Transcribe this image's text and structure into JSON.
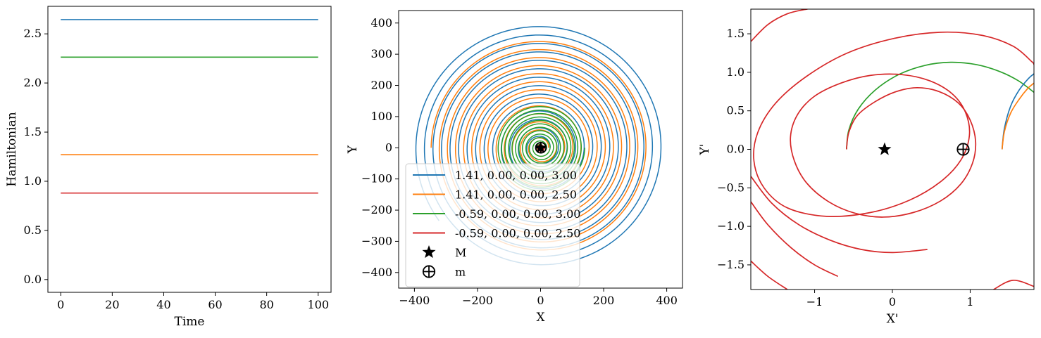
{
  "chart_data": [
    {
      "type": "line",
      "xlabel": "Time",
      "ylabel": "Hamiltonian",
      "xlim": [
        -5,
        105
      ],
      "ylim": [
        -0.13,
        2.78
      ],
      "xticks": [
        0,
        20,
        40,
        60,
        80,
        100
      ],
      "xtick_labels": [
        "0",
        "20",
        "40",
        "60",
        "80",
        "100"
      ],
      "yticks": [
        0.0,
        0.5,
        1.0,
        1.5,
        2.0,
        2.5
      ],
      "ytick_labels": [
        "0.0",
        "0.5",
        "1.0",
        "1.5",
        "2.0",
        "2.5"
      ],
      "grid": false,
      "series": [
        {
          "x": [
            0,
            100
          ],
          "values": [
            2.645,
            2.645
          ],
          "color": "#1f77b4"
        },
        {
          "x": [
            0,
            100
          ],
          "values": [
            2.263,
            2.263
          ],
          "color": "#2ca02c"
        },
        {
          "x": [
            0,
            100
          ],
          "values": [
            1.27,
            1.27
          ],
          "color": "#ff7f0e"
        },
        {
          "x": [
            0,
            100
          ],
          "values": [
            0.88,
            0.88
          ],
          "color": "#d62728"
        }
      ]
    },
    {
      "type": "line",
      "xlabel": "X",
      "ylabel": "Y",
      "xlim": [
        -450,
        450
      ],
      "ylim": [
        -450,
        440
      ],
      "xticks": [
        -400,
        -200,
        0,
        200,
        400
      ],
      "xtick_labels": [
        "−400",
        "−200",
        "0",
        "200",
        "400"
      ],
      "yticks": [
        -400,
        -300,
        -200,
        -100,
        0,
        100,
        200,
        300,
        400
      ],
      "ytick_labels": [
        "−400",
        "−300",
        "−200",
        "−100",
        "0",
        "100",
        "200",
        "300",
        "400"
      ],
      "grid": false,
      "legend_position": "lower-left",
      "series": [
        {
          "name": "1.41, 0.00, 0.00, 3.00",
          "color": "#1f77b4",
          "spiral": {
            "r_start": 30,
            "r_end": 398,
            "turns": 13.6
          }
        },
        {
          "name": "1.41, 0.00, 0.00, 2.50",
          "color": "#ff7f0e",
          "spiral": {
            "r_start": 25,
            "r_end": 347,
            "turns": 12.5
          }
        },
        {
          "name": "-0.59, 0.00, 0.00, 3.00",
          "color": "#2ca02c",
          "spiral": {
            "r_start": 8,
            "r_end": 140,
            "turns": 12.0
          }
        },
        {
          "name": "-0.59, 0.00, 0.00, 2.50",
          "color": "#d62728",
          "spiral": {
            "r_start": 2,
            "r_end": 12,
            "turns": 3.0
          }
        }
      ],
      "markers": [
        {
          "name": "M",
          "symbol": "star",
          "x": -0.1,
          "y": 0
        },
        {
          "name": "m",
          "symbol": "circled-plus",
          "x": 0.9,
          "y": 0
        }
      ]
    },
    {
      "type": "line",
      "xlabel": "X'",
      "ylabel": "Y'",
      "xlim": [
        -1.82,
        1.82
      ],
      "ylim": [
        -1.82,
        1.82
      ],
      "xticks": [
        -1,
        0,
        1
      ],
      "xtick_labels": [
        "−1",
        "0",
        "1"
      ],
      "yticks": [
        -1.5,
        -1.0,
        -0.5,
        0.0,
        0.5,
        1.0,
        1.5
      ],
      "ytick_labels": [
        "−1.5",
        "−1.0",
        "−0.5",
        "0.0",
        "0.5",
        "1.0",
        "1.5"
      ],
      "grid": false,
      "markers": [
        {
          "name": "M",
          "symbol": "star",
          "x": -0.1,
          "y": 0
        },
        {
          "name": "m",
          "symbol": "circled-plus",
          "x": 0.91,
          "y": 0
        }
      ],
      "series": [
        {
          "color": "#2ca02c",
          "x": [
            -0.59,
            -0.56,
            -0.44,
            -0.22,
            0.08,
            0.42,
            0.75,
            1.08,
            1.38,
            1.62,
            1.82
          ],
          "values": [
            0.0,
            0.25,
            0.52,
            0.77,
            0.97,
            1.09,
            1.13,
            1.1,
            1.01,
            0.89,
            0.74
          ]
        },
        {
          "color": "#1f77b4",
          "x": [
            1.41,
            1.44,
            1.52,
            1.63,
            1.75,
            1.82
          ],
          "values": [
            0.0,
            0.27,
            0.56,
            0.77,
            0.92,
            0.98
          ]
        },
        {
          "color": "#ff7f0e",
          "x": [
            1.41,
            1.44,
            1.52,
            1.63,
            1.74,
            1.82
          ],
          "values": [
            0.0,
            0.23,
            0.47,
            0.65,
            0.79,
            0.86
          ]
        },
        {
          "color": "#d62728",
          "x": [
            -0.59,
            -0.56,
            -0.45,
            -0.22,
            0.05,
            0.32,
            0.6,
            0.85,
            1.0,
            1.07,
            1.03,
            0.88,
            0.62,
            0.27,
            -0.12,
            -0.48,
            -0.82,
            -1.1,
            -1.26,
            -1.31,
            -1.22,
            -1.0,
            -0.66,
            -0.28,
            0.12,
            0.48,
            0.77,
            0.94,
            0.99,
            0.88,
            0.62,
            0.22,
            -0.28,
            -0.85,
            -1.35,
            -1.65,
            -1.78,
            -1.73,
            -1.5,
            -1.1,
            -0.58,
            0.02,
            0.62,
            1.15,
            1.55,
            1.79,
            1.82
          ],
          "values": [
            0.0,
            0.22,
            0.44,
            0.62,
            0.75,
            0.8,
            0.75,
            0.6,
            0.38,
            0.1,
            -0.18,
            -0.45,
            -0.67,
            -0.82,
            -0.88,
            -0.83,
            -0.68,
            -0.44,
            -0.15,
            0.16,
            0.45,
            0.69,
            0.86,
            0.96,
            0.97,
            0.89,
            0.72,
            0.48,
            0.18,
            -0.14,
            -0.42,
            -0.66,
            -0.82,
            -0.87,
            -0.76,
            -0.5,
            -0.15,
            0.22,
            0.6,
            0.95,
            1.25,
            1.44,
            1.52,
            1.48,
            1.34,
            1.14,
            1.1
          ]
        },
        {
          "color": "#d62728",
          "x": [
            -1.82,
            -1.6,
            -1.35,
            -1.1,
            -0.85
          ],
          "values": [
            1.4,
            1.62,
            1.76,
            1.82,
            1.86
          ]
        },
        {
          "color": "#d62728",
          "x": [
            -1.82,
            -1.55,
            -1.2,
            -0.8,
            -0.4,
            0.0,
            0.45
          ],
          "values": [
            -0.35,
            -0.7,
            -0.98,
            -1.18,
            -1.3,
            -1.34,
            -1.3
          ]
        },
        {
          "color": "#d62728",
          "x": [
            -1.82,
            -1.6,
            -1.3,
            -1.0,
            -0.7
          ],
          "values": [
            -0.68,
            -0.98,
            -1.28,
            -1.5,
            -1.65
          ]
        },
        {
          "color": "#d62728",
          "x": [
            -1.82,
            -1.6,
            -1.35
          ],
          "values": [
            -1.45,
            -1.65,
            -1.82
          ]
        },
        {
          "color": "#d62728",
          "x": [
            1.3,
            1.55,
            1.82
          ],
          "values": [
            -1.82,
            -1.7,
            -1.78
          ]
        }
      ]
    }
  ]
}
